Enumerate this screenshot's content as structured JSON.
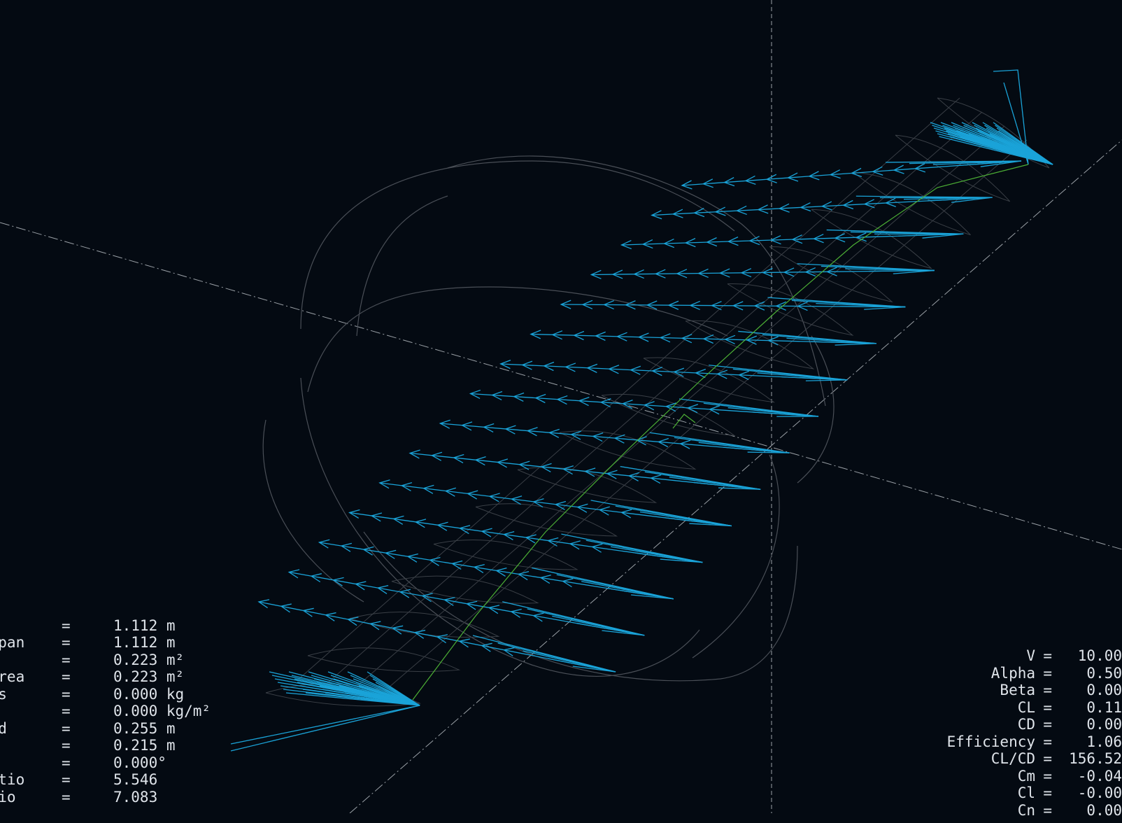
{
  "colors": {
    "background": "#040a12",
    "panel_text": "#dfe4ea",
    "force_vectors": "#1aa3d8",
    "mesh_lines": "#3a3f46",
    "streamlines": "#4a4f57",
    "axes": "#9aa0a6",
    "spar_line": "#4caf35"
  },
  "wing_properties": [
    {
      "label": "e",
      "eq": "",
      "value": ""
    },
    {
      "label": "an",
      "eq": "=",
      "value": "1.112 m"
    },
    {
      "label": " Span",
      "eq": "=",
      "value": "1.112 m"
    },
    {
      "label": "ea",
      "eq": "=",
      "value": "0.223 m²"
    },
    {
      "label": " Area",
      "eq": "=",
      "value": "0.223 m²"
    },
    {
      "label": "ass",
      "eq": "=",
      "value": "0.000 kg"
    },
    {
      "label": "ad",
      "eq": "=",
      "value": "0.000 kg/m²"
    },
    {
      "label": "ord",
      "eq": "=",
      "value": "0.255 m"
    },
    {
      "label": "",
      "eq": "=",
      "value": "0.215 m"
    },
    {
      "label": "t",
      "eq": "=",
      "value": "0.000°"
    },
    {
      "label": "Ratio",
      "eq": "=",
      "value": "5.546"
    },
    {
      "label": "atio",
      "eq": "=",
      "value": "7.083"
    },
    {
      "label": "",
      "eq": "",
      "value": ""
    }
  ],
  "aero_results": [
    {
      "label": "V",
      "eq": "=",
      "value": "10.00"
    },
    {
      "label": "Alpha",
      "eq": "=",
      "value": "0.50"
    },
    {
      "label": "Beta",
      "eq": "=",
      "value": "0.00"
    },
    {
      "label": "CL",
      "eq": "=",
      "value": "0.11"
    },
    {
      "label": "CD",
      "eq": "=",
      "value": "0.00"
    },
    {
      "label": "Efficiency",
      "eq": "=",
      "value": "1.06"
    },
    {
      "label": "CL/CD",
      "eq": "=",
      "value": "156.52"
    },
    {
      "label": "Cm",
      "eq": "=",
      "value": "-0.04"
    },
    {
      "label": "Cl",
      "eq": "=",
      "value": "-0.00"
    },
    {
      "label": "Cn",
      "eq": "=",
      "value": "0.00"
    }
  ]
}
